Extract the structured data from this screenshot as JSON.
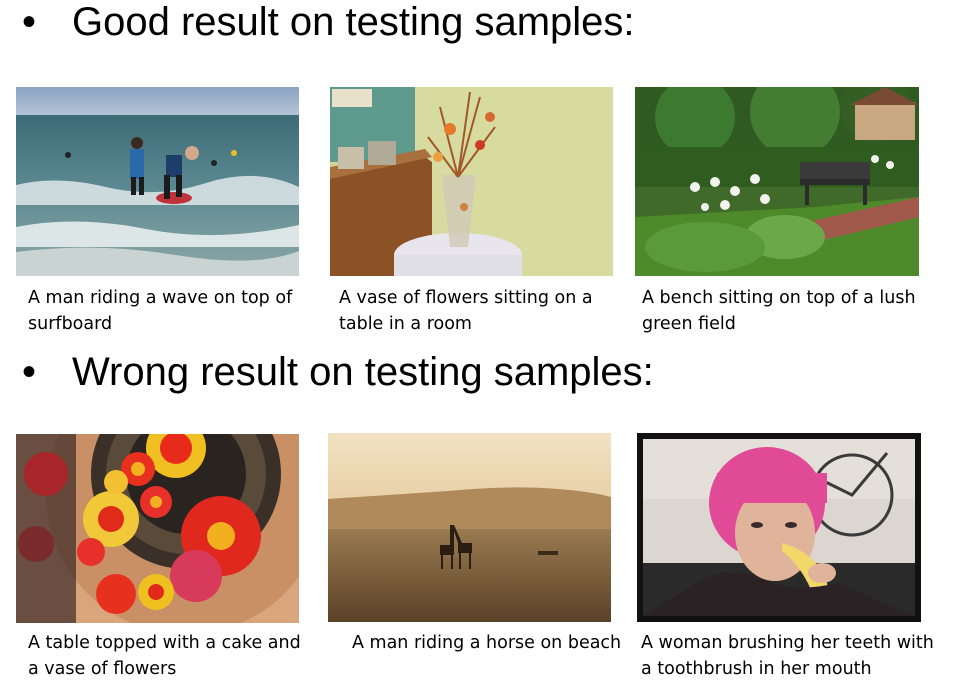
{
  "sections": [
    {
      "bullet": "•",
      "heading": "Good result on testing samples:",
      "samples": [
        {
          "caption_line1": "A man riding a wave on top of",
          "caption_line2": "surfboard",
          "image": "surfers-in-ocean-photo"
        },
        {
          "caption_line1": "A vase of flowers sitting on a",
          "caption_line2": "table in a room",
          "image": "vase-of-flowers-photo"
        },
        {
          "caption_line1": "A bench sitting on top of a lush",
          "caption_line2": "green field",
          "image": "garden-bench-photo"
        }
      ]
    },
    {
      "bullet": "•",
      "heading": "Wrong result on testing samples:",
      "samples": [
        {
          "caption_line1": "A table topped with a cake and",
          "caption_line2": "a vase of flowers",
          "image": "glass-flower-ceiling-photo"
        },
        {
          "caption_line1": "A man riding a horse on beach",
          "caption_line2": "",
          "image": "giraffes-at-sunset-photo"
        },
        {
          "caption_line1": "A woman brushing her teeth with",
          "caption_line2": "a toothbrush in her mouth",
          "image": "woman-eating-banana-photo"
        }
      ]
    }
  ]
}
